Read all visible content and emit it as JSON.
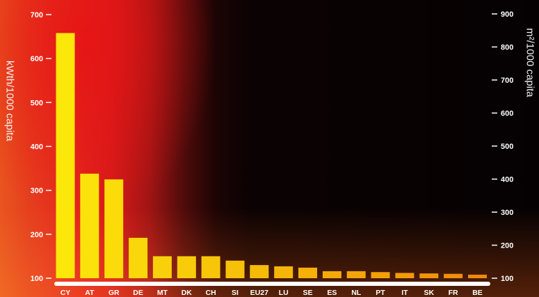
{
  "chart_data": {
    "type": "bar",
    "title": "",
    "xlabel": "",
    "ylabel": "kWth/1000 capita",
    "ylabel_right": "m²/1000 capita",
    "categories": [
      "CY",
      "AT",
      "GR",
      "DE",
      "MT",
      "DK",
      "CH",
      "SI",
      "EU27",
      "LU",
      "SE",
      "ES",
      "NL",
      "PT",
      "IT",
      "SK",
      "FR",
      "BE"
    ],
    "values": [
      658,
      338,
      325,
      192,
      150,
      150,
      150,
      140,
      130,
      127,
      124,
      116,
      116,
      114,
      112,
      111,
      110,
      108
    ],
    "ylim": [
      100,
      700
    ],
    "yticks": [
      100,
      200,
      300,
      400,
      500,
      600,
      700
    ],
    "y2lim": [
      100,
      900
    ],
    "y2ticks": [
      100,
      200,
      300,
      400,
      500,
      600,
      700,
      800,
      900
    ],
    "grid": false,
    "legend": "none",
    "colors": {
      "bar_high": "#fce70a",
      "bar_low": "#f08a08",
      "axis": "#ffffff",
      "text": "#ffffff"
    }
  }
}
